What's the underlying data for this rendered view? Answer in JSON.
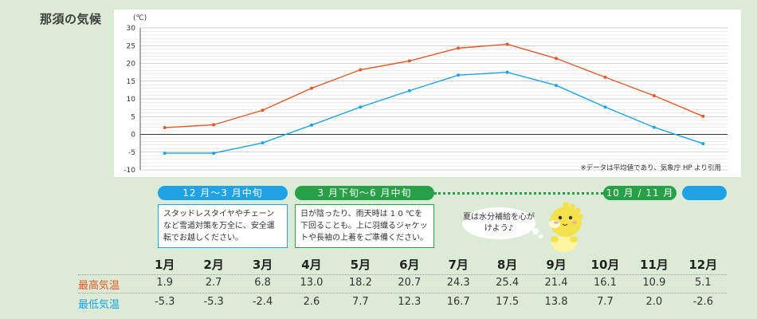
{
  "page": {
    "title": "那須の気候"
  },
  "chart_data": {
    "type": "line",
    "unit_label": "(℃)",
    "categories": [
      "1月",
      "2月",
      "3月",
      "4月",
      "5月",
      "6月",
      "7月",
      "8月",
      "9月",
      "10月",
      "11月",
      "12月"
    ],
    "series": [
      {
        "name": "最高気温",
        "color": "#e0592a",
        "values": [
          1.9,
          2.7,
          6.8,
          13.0,
          18.2,
          20.7,
          24.3,
          25.4,
          21.4,
          16.1,
          10.9,
          5.1
        ]
      },
      {
        "name": "最低気温",
        "color": "#1da3e6",
        "values": [
          -5.3,
          -5.3,
          -2.4,
          2.6,
          7.7,
          12.3,
          16.7,
          17.5,
          13.8,
          7.7,
          2.0,
          -2.6
        ]
      }
    ],
    "yticks": [
      30,
      25,
      20,
      15,
      10,
      5,
      0,
      -5,
      -10
    ],
    "ylim": [
      -10,
      30
    ],
    "grid": true,
    "note": "※データは平均値であり、気象庁 HP より引用"
  },
  "seasons": {
    "winter": "12 月～3 月中旬",
    "spring": "3 月下旬～6 月中旬",
    "autumn": "10 月 / 11 月"
  },
  "notes": {
    "winter": "スタッドレスタイヤやチェーンなど雪道対策を万全に、安全運転でお越しください。",
    "spring": "日が陰ったり、雨天時は 1 0 ℃を下回ることも。上に羽織るジャケットや長袖の上着をご準備ください。",
    "summer_bubble": "夏は水分補給を心がけよう♪"
  },
  "table": {
    "max_label": "最高気温",
    "min_label": "最低気温",
    "max_values": [
      "1.9",
      "2.7",
      "6.8",
      "13.0",
      "18.2",
      "20.7",
      "24.3",
      "25.4",
      "21.4",
      "16.1",
      "10.9",
      "5.1"
    ],
    "min_values": [
      "-5.3",
      "-5.3",
      "-2.4",
      "2.6",
      "7.7",
      "12.3",
      "16.7",
      "17.5",
      "13.8",
      "7.7",
      "2.0",
      "-2.6"
    ]
  }
}
